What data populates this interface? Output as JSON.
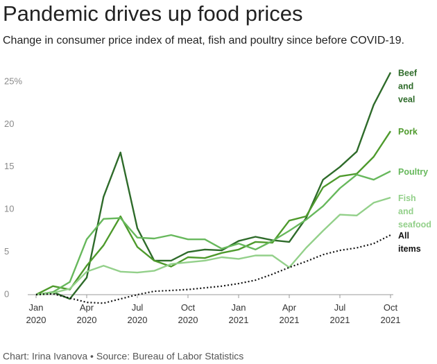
{
  "chart_data": {
    "type": "line",
    "title": "Pandemic drives up food prices",
    "subtitle": "Change in consumer price index of meat, fish and poultry since before COVID-19.",
    "source": "Chart: Irina Ivanova • Source: Bureau of Labor Statistics",
    "categories": [
      "Jan 2020",
      null,
      null,
      "Apr 2020",
      null,
      null,
      "Jul 2020",
      null,
      null,
      "Oct 2020",
      null,
      null,
      "Jan 2021",
      null,
      null,
      "Apr 2021",
      null,
      null,
      "Jul 2021",
      null,
      null,
      "Oct 2021"
    ],
    "ylim": [
      -2,
      26.5
    ],
    "yticks": [
      0,
      5,
      10,
      15,
      20,
      {
        "value": 25,
        "label": "25%"
      }
    ],
    "grid": false,
    "series": [
      {
        "name": "Beef and veal",
        "color": "#2e6b2a",
        "style": "solid",
        "values": [
          0,
          0.3,
          -0.5,
          2,
          11.5,
          16.7,
          7.8,
          4,
          4,
          5,
          5.3,
          5.2,
          6.3,
          6.8,
          6.4,
          6.2,
          9,
          13.5,
          15,
          16.8,
          22.3,
          26.1
        ]
      },
      {
        "name": "Pork",
        "color": "#4e9a2c",
        "style": "solid",
        "values": [
          0,
          1,
          0.6,
          3.4,
          5.8,
          9.2,
          5.6,
          4,
          3.3,
          4.4,
          4.3,
          4.9,
          5.3,
          6.2,
          6.1,
          8.7,
          9.2,
          12.6,
          13.9,
          14.2,
          16.2,
          19.2
        ]
      },
      {
        "name": "Poultry",
        "color": "#67b85c",
        "style": "solid",
        "values": [
          0,
          0.3,
          1.5,
          6.5,
          8.9,
          9,
          6.7,
          6.6,
          7,
          6.5,
          6.5,
          5.4,
          6,
          5.3,
          6.3,
          7.5,
          8.8,
          10.4,
          12.5,
          14.1,
          13.5,
          14.5
        ]
      },
      {
        "name": "Fish and seafood",
        "color": "#93d08a",
        "style": "solid",
        "values": [
          0,
          0.2,
          0.7,
          2.7,
          3.4,
          2.7,
          2.6,
          2.8,
          3.6,
          3.8,
          4,
          4.4,
          4.2,
          4.6,
          4.6,
          3.2,
          5.5,
          7.5,
          9.4,
          9.3,
          10.8,
          11.4
        ]
      },
      {
        "name": "All items",
        "color": "#111111",
        "style": "dotted",
        "values": [
          0,
          0.1,
          -0.4,
          -0.9,
          -1,
          -0.5,
          0,
          0.4,
          0.5,
          0.6,
          0.8,
          1,
          1.3,
          1.7,
          2.4,
          3.2,
          3.9,
          4.7,
          5.2,
          5.5,
          6,
          7
        ]
      }
    ]
  }
}
